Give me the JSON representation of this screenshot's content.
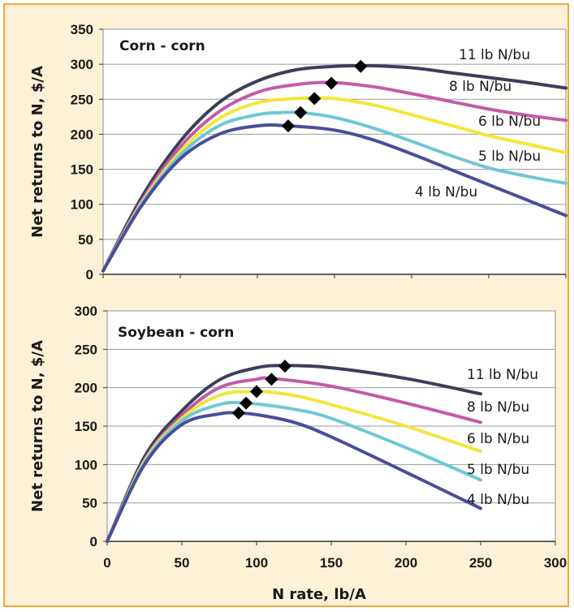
{
  "chart_data": [
    {
      "type": "line",
      "title": "Corn - corn",
      "ylabel": "Net returns to N, $/A",
      "xlabel": "",
      "xlim": [
        0,
        300
      ],
      "ylim": [
        0,
        350
      ],
      "xticks": [],
      "yticks": [
        0,
        50,
        100,
        150,
        200,
        250,
        300,
        350
      ],
      "grid": "horizontal",
      "series": [
        {
          "name": "11 lb N/bu",
          "color": "#3b3f5c",
          "points": [
            [
              0,
              5
            ],
            [
              25,
              110
            ],
            [
              50,
              190
            ],
            [
              75,
              245
            ],
            [
              100,
              276
            ],
            [
              125,
              292
            ],
            [
              150,
              297
            ],
            [
              170,
              298
            ],
            [
              200,
              295
            ],
            [
              225,
              288
            ],
            [
              250,
              281
            ],
            [
              275,
              274
            ],
            [
              300,
              266
            ]
          ],
          "optimum": [
            167,
            297
          ]
        },
        {
          "name": "8 lb N/bu",
          "color": "#c45aa8",
          "points": [
            [
              0,
              5
            ],
            [
              25,
              105
            ],
            [
              50,
              182
            ],
            [
              75,
              232
            ],
            [
              100,
              260
            ],
            [
              125,
              271
            ],
            [
              148,
              274
            ],
            [
              175,
              268
            ],
            [
              200,
              258
            ],
            [
              225,
              247
            ],
            [
              250,
              236
            ],
            [
              275,
              227
            ],
            [
              300,
              220
            ]
          ],
          "optimum": [
            148,
            273
          ]
        },
        {
          "name": "6 lb N/bu",
          "color": "#f2e63a",
          "points": [
            [
              0,
              5
            ],
            [
              25,
              102
            ],
            [
              50,
              175
            ],
            [
              75,
              222
            ],
            [
              100,
              245
            ],
            [
              125,
              251
            ],
            [
              137,
              252
            ],
            [
              150,
              251
            ],
            [
              175,
              242
            ],
            [
              200,
              228
            ],
            [
              225,
              213
            ],
            [
              250,
              198
            ],
            [
              275,
              186
            ],
            [
              300,
              174
            ]
          ],
          "optimum": [
            137,
            251
          ]
        },
        {
          "name": "5 lb N/bu",
          "color": "#6ec8d4",
          "points": [
            [
              0,
              5
            ],
            [
              25,
              100
            ],
            [
              50,
              170
            ],
            [
              75,
              212
            ],
            [
              100,
              228
            ],
            [
              115,
              231
            ],
            [
              128,
              231
            ],
            [
              150,
              224
            ],
            [
              175,
              209
            ],
            [
              200,
              190
            ],
            [
              225,
              170
            ],
            [
              250,
              152
            ],
            [
              275,
              140
            ],
            [
              300,
              130
            ]
          ],
          "optimum": [
            128,
            231
          ]
        },
        {
          "name": "4 lb N/bu",
          "color": "#4a4d9a",
          "points": [
            [
              0,
              5
            ],
            [
              25,
              98
            ],
            [
              50,
              165
            ],
            [
              75,
              200
            ],
            [
              100,
              212
            ],
            [
              120,
              212
            ],
            [
              150,
              206
            ],
            [
              175,
              192
            ],
            [
              200,
              172
            ],
            [
              225,
              150
            ],
            [
              250,
              128
            ],
            [
              275,
              106
            ],
            [
              300,
              84
            ]
          ],
          "optimum": [
            120,
            212
          ]
        }
      ]
    },
    {
      "type": "line",
      "title": "Soybean - corn",
      "ylabel": "Net returns to N, $/A",
      "xlabel": "N rate, lb/A",
      "xlim": [
        0,
        300
      ],
      "ylim": [
        0,
        300
      ],
      "xticks": [
        0,
        50,
        100,
        150,
        200,
        250,
        300
      ],
      "yticks": [
        0,
        50,
        100,
        150,
        200,
        250,
        300
      ],
      "grid": "horizontal",
      "series": [
        {
          "name": "11 lb N/bu",
          "color": "#3b3f5c",
          "points": [
            [
              0,
              0
            ],
            [
              25,
              110
            ],
            [
              50,
              170
            ],
            [
              75,
              210
            ],
            [
              100,
              226
            ],
            [
              120,
              229
            ],
            [
              150,
              226
            ],
            [
              200,
              212
            ],
            [
              250,
              192
            ]
          ],
          "optimum": [
            119,
            228
          ]
        },
        {
          "name": "8 lb N/bu",
          "color": "#c45aa8",
          "points": [
            [
              0,
              0
            ],
            [
              25,
              106
            ],
            [
              50,
              164
            ],
            [
              75,
              200
            ],
            [
              100,
              211
            ],
            [
              110,
              212
            ],
            [
              150,
              202
            ],
            [
              200,
              180
            ],
            [
              250,
              155
            ]
          ],
          "optimum": [
            110,
            211
          ]
        },
        {
          "name": "6 lb N/bu",
          "color": "#f2e63a",
          "points": [
            [
              0,
              0
            ],
            [
              25,
              104
            ],
            [
              50,
              160
            ],
            [
              75,
              190
            ],
            [
              100,
              195
            ],
            [
              125,
              190
            ],
            [
              150,
              178
            ],
            [
              200,
              150
            ],
            [
              250,
              117
            ]
          ],
          "optimum": [
            100,
            195
          ]
        },
        {
          "name": "5 lb N/bu",
          "color": "#6ec8d4",
          "points": [
            [
              0,
              0
            ],
            [
              25,
              102
            ],
            [
              50,
              157
            ],
            [
              75,
              178
            ],
            [
              93,
              180
            ],
            [
              125,
              172
            ],
            [
              150,
              160
            ],
            [
              200,
              122
            ],
            [
              250,
              80
            ]
          ],
          "optimum": [
            93,
            180
          ]
        },
        {
          "name": "4 lb N/bu",
          "color": "#4a4d9a",
          "points": [
            [
              0,
              0
            ],
            [
              25,
              100
            ],
            [
              50,
              152
            ],
            [
              75,
              166
            ],
            [
              88,
              167
            ],
            [
              100,
              165
            ],
            [
              125,
              155
            ],
            [
              150,
              136
            ],
            [
              200,
              90
            ],
            [
              250,
              43
            ]
          ],
          "optimum": [
            88,
            167
          ]
        }
      ]
    }
  ]
}
